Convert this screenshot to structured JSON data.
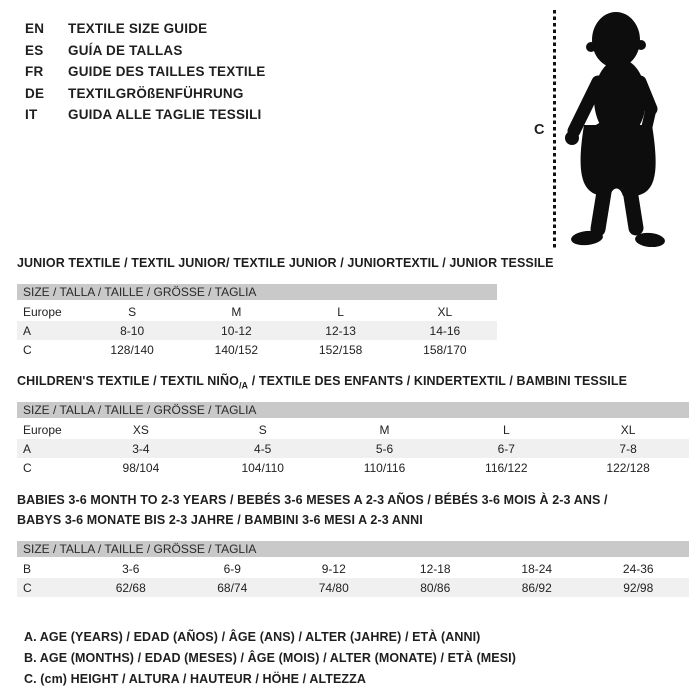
{
  "colors": {
    "background": "#ffffff",
    "text": "#1e1e1e",
    "header_bar": "#c9c9c9",
    "row_shade": "#f0f0f0",
    "silhouette": "#0d0d0d"
  },
  "language_guide": {
    "items": [
      {
        "code": "EN",
        "label": "TEXTILE SIZE GUIDE"
      },
      {
        "code": "ES",
        "label": "GUÍA DE TALLAS"
      },
      {
        "code": "FR",
        "label": "GUIDE DES TAILLES TEXTILE"
      },
      {
        "code": "DE",
        "label": "TEXTILGRÖßENFÜHRUNG"
      },
      {
        "code": "IT",
        "label": "GUIDA ALLE TAGLIE TESSILI"
      }
    ]
  },
  "figure": {
    "measure_label": "C",
    "icon": "toddler-silhouette-icon"
  },
  "tables": [
    {
      "id": "table-junior",
      "name": "size-table-junior",
      "title_lines": [
        [
          {
            "t": "JUNIOR TEXTILE / TEXTIL JUNIOR/ TEXTILE JUNIOR / JUNIORTEXTIL / JUNIOR TESSILE"
          }
        ]
      ],
      "size_header": "SIZE / TALLA / TAILLE / GRÖSSE / TAGLIA",
      "rows": [
        {
          "label": "Europe",
          "values": [
            "S",
            "M",
            "L",
            "XL"
          ],
          "shaded": false
        },
        {
          "label": "A",
          "values": [
            "8-10",
            "10-12",
            "12-13",
            "14-16"
          ],
          "shaded": true
        },
        {
          "label": "C",
          "values": [
            "128/140",
            "140/152",
            "152/158",
            "158/170"
          ],
          "shaded": false
        }
      ]
    },
    {
      "id": "table-children",
      "name": "size-table-children",
      "title_lines": [
        [
          {
            "t": "CHILDREN'S TEXTILE / TEXTIL NIÑO"
          },
          {
            "t": "/A",
            "sub": true
          },
          {
            "t": " / TEXTILE DES ENFANTS / KINDERTEXTIL / BAMBINI TESSILE"
          }
        ]
      ],
      "size_header": "SIZE / TALLA / TAILLE / GRÖSSE / TAGLIA",
      "rows": [
        {
          "label": "Europe",
          "values": [
            "XS",
            "S",
            "M",
            "L",
            "XL"
          ],
          "shaded": false
        },
        {
          "label": "A",
          "values": [
            "3-4",
            "4-5",
            "5-6",
            "6-7",
            "7-8"
          ],
          "shaded": true
        },
        {
          "label": "C",
          "values": [
            "98/104",
            "104/110",
            "110/116",
            "116/122",
            "122/128"
          ],
          "shaded": false
        }
      ]
    },
    {
      "id": "table-babies",
      "name": "size-table-babies",
      "title_lines": [
        [
          {
            "t": "BABIES 3-6 MONTH TO 2-3 YEARS / BEBÉS 3-6 MESES A 2-3 AÑOS / BÉBÉS 3-6 MOIS À 2-3 ANS /"
          }
        ],
        [
          {
            "t": "BABYS 3-6 MONATE BIS 2-3 JAHRE / BAMBINI 3-6 MESI A 2-3 ANNI"
          }
        ]
      ],
      "size_header": "SIZE / TALLA / TAILLE / GRÖSSE / TAGLIA",
      "rows": [
        {
          "label": "B",
          "values": [
            "3-6",
            "6-9",
            "9-12",
            "12-18",
            "18-24",
            "24-36"
          ],
          "shaded": false
        },
        {
          "label": "C",
          "values": [
            "62/68",
            "68/74",
            "74/80",
            "80/86",
            "86/92",
            "92/98"
          ],
          "shaded": true
        }
      ]
    }
  ],
  "footnotes": [
    "A. AGE (YEARS) / EDAD (AÑOS) / ÂGE (ANS) / ALTER (JAHRE) / ETÀ (ANNI)",
    "B. AGE (MONTHS) / EDAD (MESES) / ÂGE (MOIS) / ALTER (MONATE) / ETÀ (MESI)",
    "C. (cm) HEIGHT / ALTURA / HAUTEUR / HÖHE / ALTEZZA"
  ]
}
